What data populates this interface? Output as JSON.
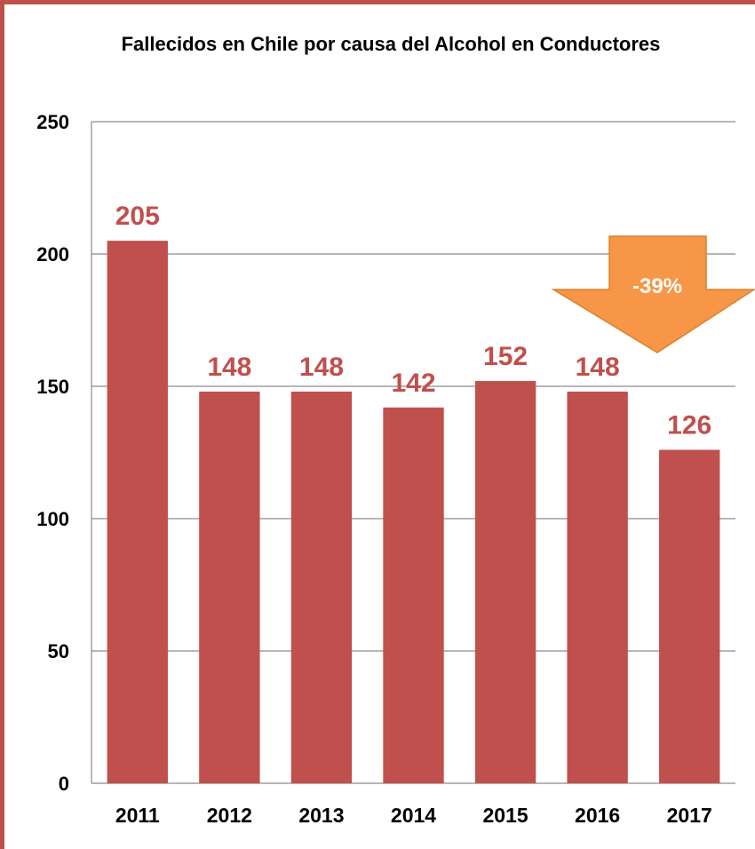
{
  "chart_data": {
    "type": "bar",
    "title": "Fallecidos en Chile por causa del Alcohol en Conductores",
    "categories": [
      "2011",
      "2012",
      "2013",
      "2014",
      "2015",
      "2016",
      "2017"
    ],
    "values": [
      205,
      148,
      148,
      142,
      152,
      148,
      126
    ],
    "data_labels": [
      "205",
      "148",
      "148",
      "142",
      "152",
      "148",
      "126"
    ],
    "xlabel": "",
    "ylabel": "",
    "ylim": [
      0,
      250
    ],
    "yticks": [
      0,
      50,
      100,
      150,
      200,
      250
    ],
    "ytick_labels": [
      "0",
      "50",
      "100",
      "150",
      "200",
      "250"
    ],
    "grid": true,
    "legend": "none",
    "bar_color": "#c0504d",
    "label_color": "#c0504d",
    "annotation": {
      "text": "-39%",
      "shape": "down-arrow",
      "fill": "#f79646"
    }
  }
}
